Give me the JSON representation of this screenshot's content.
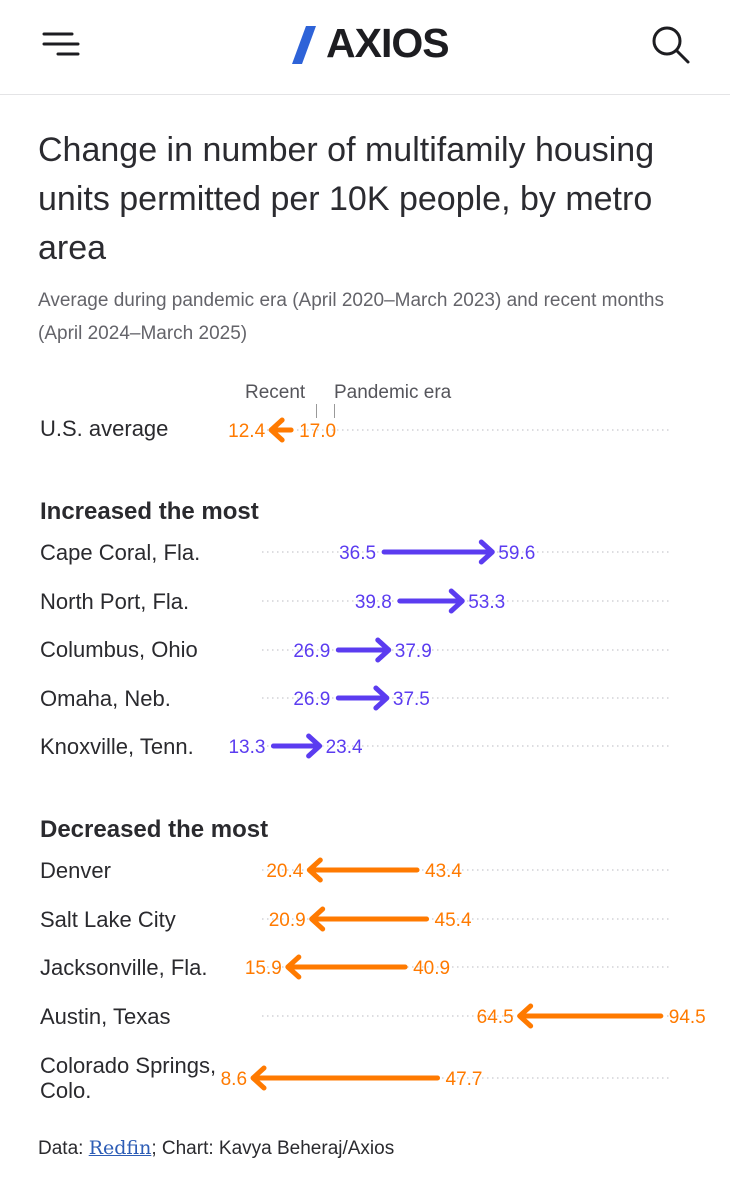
{
  "header": {
    "logo_text": "AXIOS",
    "menu_icon": "menu-icon",
    "search_icon": "search-icon"
  },
  "chart_data": {
    "type": "arrow-dot",
    "title": "Change in number of multifamily housing units permitted per 10K people, by metro area",
    "subtitle": "Average during pandemic era (April 2020–March 2023) and recent months (April 2024–March 2025)",
    "legend": {
      "recent": "Recent",
      "pandemic": "Pandemic era"
    },
    "colors": {
      "increase": "#5b3cf0",
      "decrease": "#ff7a00",
      "grid": "#d2d2d6"
    },
    "xlim": [
      0,
      100
    ],
    "us_average": {
      "label": "U.S. average",
      "recent": 12.4,
      "pandemic": 17.0,
      "recent_text": "12.4",
      "pandemic_text": "17.0"
    },
    "groups": [
      {
        "heading": "Increased the most",
        "direction": "increase",
        "rows": [
          {
            "label": "Cape Coral, Fla.",
            "pandemic": 36.5,
            "recent": 59.6,
            "pandemic_text": "36.5",
            "recent_text": "59.6"
          },
          {
            "label": "North Port, Fla.",
            "pandemic": 39.8,
            "recent": 53.3,
            "pandemic_text": "39.8",
            "recent_text": "53.3"
          },
          {
            "label": "Columbus, Ohio",
            "pandemic": 26.9,
            "recent": 37.9,
            "pandemic_text": "26.9",
            "recent_text": "37.9"
          },
          {
            "label": "Omaha, Neb.",
            "pandemic": 26.9,
            "recent": 37.5,
            "pandemic_text": "26.9",
            "recent_text": "37.5"
          },
          {
            "label": "Knoxville, Tenn.",
            "pandemic": 13.3,
            "recent": 23.4,
            "pandemic_text": "13.3",
            "recent_text": "23.4"
          }
        ]
      },
      {
        "heading": "Decreased the most",
        "direction": "decrease",
        "rows": [
          {
            "label": "Denver",
            "pandemic": 43.4,
            "recent": 20.4,
            "pandemic_text": "43.4",
            "recent_text": "20.4"
          },
          {
            "label": "Salt Lake City",
            "pandemic": 45.4,
            "recent": 20.9,
            "pandemic_text": "45.4",
            "recent_text": "20.9"
          },
          {
            "label": "Jacksonville, Fla.",
            "pandemic": 40.9,
            "recent": 15.9,
            "pandemic_text": "40.9",
            "recent_text": "15.9"
          },
          {
            "label": "Austin, Texas",
            "pandemic": 94.5,
            "recent": 64.5,
            "pandemic_text": "94.5",
            "recent_text": "64.5"
          },
          {
            "label": "Colorado Springs, Colo.",
            "pandemic": 47.7,
            "recent": 8.6,
            "pandemic_text": "47.7",
            "recent_text": "8.6"
          }
        ]
      }
    ]
  },
  "source": {
    "prefix": "Data: ",
    "link": "Redfin",
    "suffix": "; Chart: Kavya Beheraj/Axios"
  }
}
